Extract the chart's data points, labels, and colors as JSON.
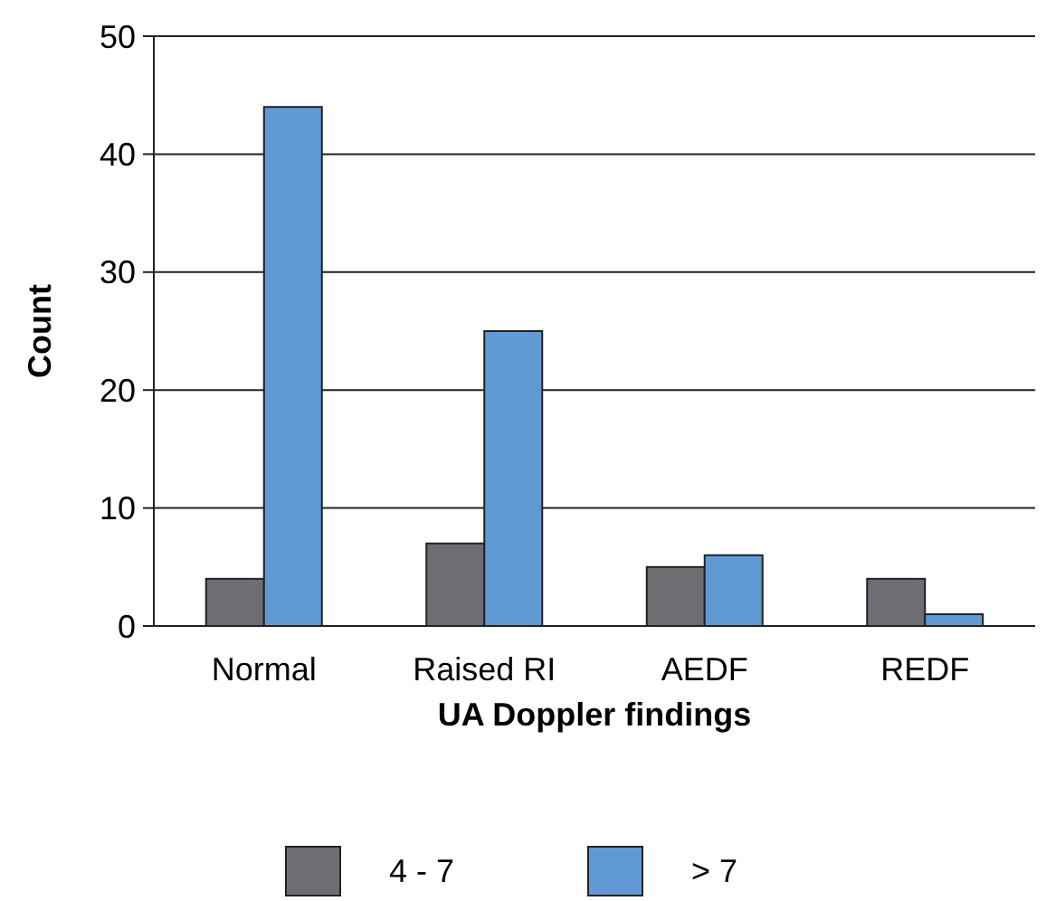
{
  "chart_data": {
    "type": "bar",
    "xlabel": "UA Doppler findings",
    "ylabel": "Count",
    "categories": [
      "Normal",
      "Raised RI",
      "AEDF",
      "REDF"
    ],
    "series": [
      {
        "name": "4 - 7",
        "color": "#6d6e71",
        "values": [
          4,
          7,
          5,
          4
        ]
      },
      {
        "name": "> 7",
        "color": "#6199d4",
        "values": [
          44,
          25,
          6,
          1
        ]
      }
    ],
    "ylim": [
      0,
      50
    ],
    "yticks": [
      0,
      10,
      20,
      30,
      40,
      50
    ],
    "grid": "y",
    "legend": "bottom"
  }
}
